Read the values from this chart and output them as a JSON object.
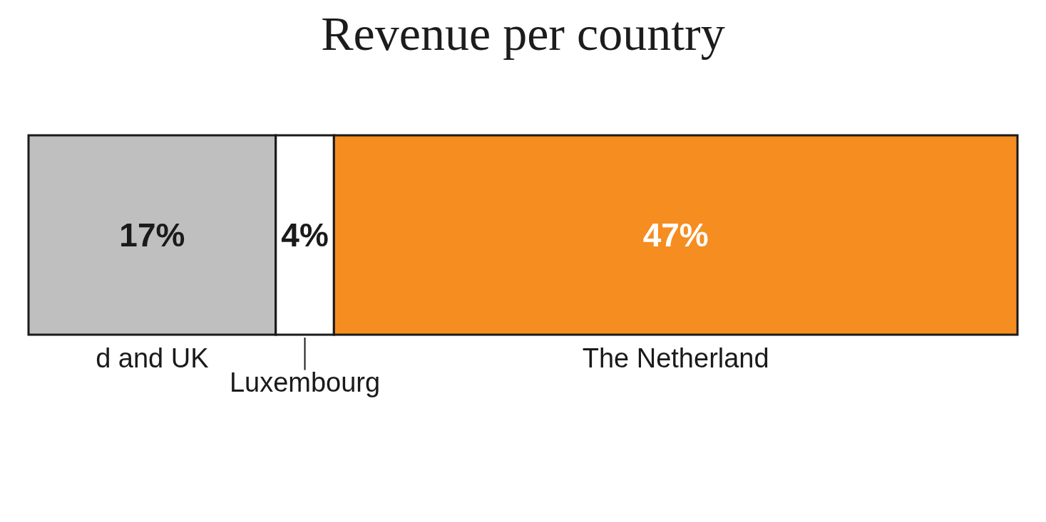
{
  "chart_data": {
    "type": "bar",
    "title": "Revenue per country",
    "orientation": "horizontal",
    "stacked": true,
    "categories": [
      null
    ],
    "series": [
      {
        "name": "d and UK",
        "color": "#bfbfbf",
        "values": [
          17
        ],
        "value_labels": [
          "17%"
        ]
      },
      {
        "name": "Luxembourg",
        "color": "#ffffff",
        "values": [
          4
        ],
        "value_labels": [
          "4%"
        ]
      },
      {
        "name": "The Netherland",
        "color": "#f58d20",
        "values": [
          47
        ],
        "value_labels": [
          "47%"
        ]
      }
    ]
  }
}
